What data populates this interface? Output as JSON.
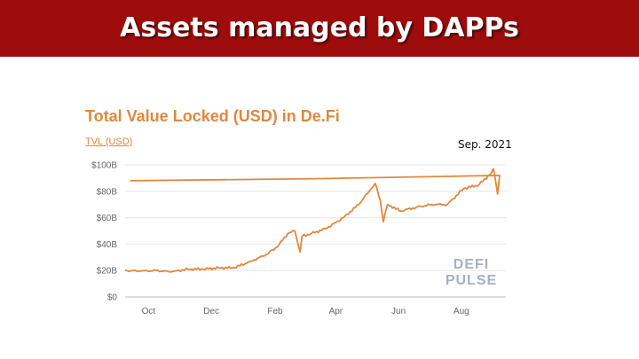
{
  "slide": {
    "title": "Assets managed by DAPPs",
    "date_note": "Sep. 2021"
  },
  "watermark": {
    "line1": "DEFI",
    "line2": "PULSE"
  },
  "colors": {
    "title_bar": "#9e0c0c",
    "series": "#e2873c",
    "watermark": "#a9afc4"
  },
  "chart_data": {
    "type": "line",
    "title": "Total Value Locked (USD) in De.Fi",
    "xlabel": "",
    "ylabel": "",
    "grid": true,
    "legend": "top-left",
    "y_ticks": [
      {
        "value": 0,
        "label": "$0"
      },
      {
        "value": 20,
        "label": "$20B"
      },
      {
        "value": 40,
        "label": "$40B"
      },
      {
        "value": 60,
        "label": "$60B"
      },
      {
        "value": 80,
        "label": "$80B"
      },
      {
        "value": 100,
        "label": "$100B"
      }
    ],
    "x_ticks": [
      "Oct",
      "Dec",
      "Feb",
      "Apr",
      "Jun",
      "Aug"
    ],
    "ylim": [
      0,
      100
    ],
    "series": [
      {
        "name": "TVL (USD)",
        "x": [
          "Sep 10",
          "Sep 25",
          "Oct 10",
          "Oct 25",
          "Nov 10",
          "Nov 25",
          "Dec 10",
          "Dec 25",
          "Jan 10",
          "Jan 25",
          "Feb 5",
          "Feb 15",
          "Feb 22",
          "Feb 27",
          "Mar 1",
          "Mar 10",
          "Mar 25",
          "Apr 10",
          "Apr 25",
          "May 5",
          "May 11",
          "May 16",
          "May 19",
          "May 23",
          "Jun 5",
          "Jun 20",
          "Jul 5",
          "Jul 20",
          "Aug 5",
          "Aug 20",
          "Sep 1",
          "Sep 3",
          "Sep 7",
          "Sep 9",
          "Sep 15"
        ],
        "values": [
          20,
          19.5,
          20,
          19,
          21,
          21,
          22,
          22,
          27,
          32,
          38,
          48,
          50,
          34,
          46,
          48,
          52,
          60,
          70,
          80,
          86,
          73,
          57,
          70,
          65,
          68,
          70,
          70,
          82,
          85,
          94,
          97,
          78,
          92,
          88
        ]
      }
    ]
  }
}
